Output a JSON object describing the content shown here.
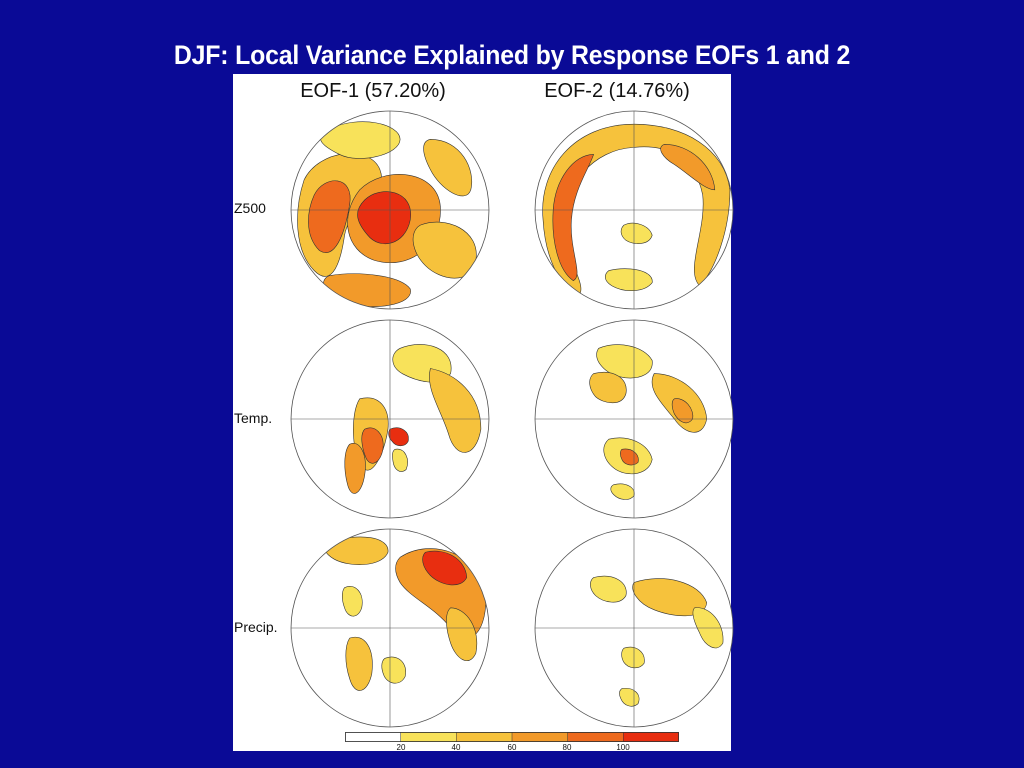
{
  "slide": {
    "title": "DJF: Local Variance Explained by Response EOFs 1 and 2"
  },
  "figure": {
    "columns": [
      {
        "label": "EOF-1 (57.20%)"
      },
      {
        "label": "EOF-2 (14.76%)"
      }
    ],
    "rows": [
      {
        "label": "Z500"
      },
      {
        "label": "Temp."
      },
      {
        "label": "Precip."
      }
    ],
    "colorbar": {
      "ticks": [
        "20",
        "40",
        "60",
        "80",
        "100"
      ],
      "colors": [
        "#ffffff",
        "#f8e25a",
        "#f6c23c",
        "#f29a2a",
        "#ee6a1e",
        "#e82e10"
      ]
    }
  }
}
